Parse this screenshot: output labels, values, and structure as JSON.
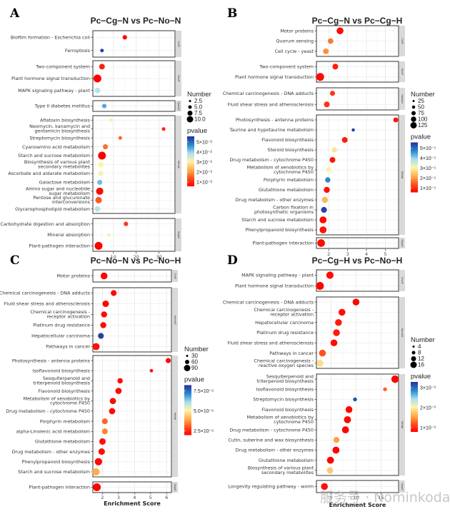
{
  "figure": {
    "watermark": "服务号 · Nominkoda"
  },
  "chart_data": [
    {
      "type": "scatter",
      "panel_letter": "A",
      "title": "Pc−Cg−N vs Pc−No−N",
      "xlabel": "",
      "ylabel": "",
      "xlim": [
        1,
        37
      ],
      "xticks": [
        10,
        20,
        30
      ],
      "grid": true,
      "size_legend": {
        "title": "Number",
        "values": [
          "2.5",
          "5.0",
          "7.5",
          "10.0"
        ]
      },
      "color_legend": {
        "title": "pvalue",
        "labels": [
          "5×10⁻²",
          "4×10⁻²",
          "3×10⁻²",
          "2×10⁻²",
          "1×10⁻²"
        ],
        "min": 0.003,
        "max": 0.055
      },
      "groups": [
        {
          "strip": "CellP",
          "terms": [
            {
              "name": "Biofilm formation - Escherichia coli",
              "score": 15.0,
              "number": 2,
              "pvalue": 0.004
            },
            {
              "name": "Ferroptosis",
              "score": 5.0,
              "number": 1,
              "pvalue": 0.053
            }
          ]
        },
        {
          "strip": "EnvIP",
          "terms": [
            {
              "name": "Two-component system",
              "score": 5.0,
              "number": 4,
              "pvalue": 0.006
            },
            {
              "name": "Plant hormone signal transduction",
              "score": 3.0,
              "number": 10,
              "pvalue": 0.003
            },
            {
              "name": "MAPK signaling pathway - plant",
              "score": 3.0,
              "number": 4,
              "pvalue": 0.036
            }
          ]
        },
        {
          "strip": "HumaD",
          "terms": [
            {
              "name": "Type II diabetes mellitus",
              "score": 6.0,
              "number": 2,
              "pvalue": 0.043
            }
          ]
        },
        {
          "strip": "Metab",
          "terms": [
            {
              "name": "Aflatoxin biosynthesis",
              "score": 9.0,
              "number": 1,
              "pvalue": 0.03
            },
            {
              "name": "Neomycin, kanamycin and gentamicin biosynthesis",
              "score": 32.0,
              "number": 1,
              "pvalue": 0.007
            },
            {
              "name": "Streptomycin biosynthesis",
              "score": 13.0,
              "number": 1,
              "pvalue": 0.013
            },
            {
              "name": "Cyanoamino acid metabolism",
              "score": 6.5,
              "number": 3,
              "pvalue": 0.014
            },
            {
              "name": "Starch and sucrose metabolism",
              "score": 5.0,
              "number": 10,
              "pvalue": 0.003
            },
            {
              "name": "Biosynthesis of various plant secondary metabolites",
              "score": 4.5,
              "number": 4,
              "pvalue": 0.029
            },
            {
              "name": "Ascorbate and aldarate metabolism",
              "score": 4.5,
              "number": 3,
              "pvalue": 0.03
            },
            {
              "name": "Galactose metabolism",
              "score": 4.0,
              "number": 3,
              "pvalue": 0.041
            },
            {
              "name": "Amino sugar and nucleotide sugar metabolism",
              "score": 4.0,
              "number": 8,
              "pvalue": 0.004
            },
            {
              "name": "Pentose and glucuronate interconversions",
              "score": 3.5,
              "number": 6,
              "pvalue": 0.012
            },
            {
              "name": "Glycerophospholipid metabolism",
              "score": 3.0,
              "number": 4,
              "pvalue": 0.036
            }
          ]
        },
        {
          "strip": "OrgaS",
          "terms": [
            {
              "name": "Carbohydrate digestion and absorption",
              "score": 15.5,
              "number": 2,
              "pvalue": 0.009
            },
            {
              "name": "Mineral absorption",
              "score": 8.0,
              "number": 1,
              "pvalue": 0.03
            },
            {
              "name": "Plant-pathogen interaction",
              "score": 3.5,
              "number": 10,
              "pvalue": 0.003
            }
          ]
        }
      ]
    },
    {
      "type": "scatter",
      "panel_letter": "B",
      "title": "Pc−Cg−N vs Pc−Cg−H",
      "xlabel": "",
      "ylabel": "",
      "xlim": [
        1.35,
        5.7
      ],
      "xticks": [
        2,
        3,
        4,
        5
      ],
      "grid": true,
      "size_legend": {
        "title": "Number",
        "values": [
          "25",
          "50",
          "75",
          "100",
          "125"
        ]
      },
      "color_legend": {
        "title": "pvalue",
        "labels": [
          "5×10⁻⁵",
          "4×10⁻⁵",
          "3×10⁻⁵",
          "2×10⁻⁵",
          "1×10⁻⁵"
        ],
        "min": 1e-07,
        "max": 5.2e-05
      },
      "groups": [
        {
          "strip": "CellP",
          "terms": [
            {
              "name": "Motor proteins",
              "score": 2.6,
              "number": 90,
              "pvalue": 1e-06
            },
            {
              "name": "Quorum sensing",
              "score": 2.1,
              "number": 50,
              "pvalue": 1.2e-05
            },
            {
              "name": "Cell cycle - yeast",
              "score": 1.85,
              "number": 55,
              "pvalue": 1.4e-05
            }
          ]
        },
        {
          "strip": "EnvIP",
          "terms": [
            {
              "name": "Two-component system",
              "score": 2.35,
              "number": 55,
              "pvalue": 3e-06
            },
            {
              "name": "Plant hormone signal transduction",
              "score": 1.55,
              "number": 130,
              "pvalue": 1e-06
            }
          ]
        },
        {
          "strip": "HumaD",
          "terms": [
            {
              "name": "Chemical carcinogenesis - DNA adducts",
              "score": 2.2,
              "number": 40,
              "pvalue": 6e-06
            },
            {
              "name": "Fluid shear stress and atherosclerosis",
              "score": 1.9,
              "number": 55,
              "pvalue": 5e-06
            }
          ]
        },
        {
          "strip": "Metab",
          "terms": [
            {
              "name": "Photosynthesis - antenna proteins",
              "score": 5.55,
              "number": 35,
              "pvalue": 2e-06
            },
            {
              "name": "Taurine and hypotaurine metabolism",
              "score": 3.3,
              "number": 8,
              "pvalue": 5e-05
            },
            {
              "name": "Flavonoid biosynthesis",
              "score": 2.85,
              "number": 55,
              "pvalue": 3e-06
            },
            {
              "name": "Steroid biosynthesis",
              "score": 2.3,
              "number": 45,
              "pvalue": 2.4e-05
            },
            {
              "name": "Drug metabolism - cytochrome P450",
              "score": 2.2,
              "number": 55,
              "pvalue": 2e-06
            },
            {
              "name": "Metabolism of xenobiotics by cytochrome P450",
              "score": 2.0,
              "number": 45,
              "pvalue": 2.6e-05
            },
            {
              "name": "Porphyrin metabolism",
              "score": 1.95,
              "number": 45,
              "pvalue": 4.3e-05
            },
            {
              "name": "Glutathione metabolism",
              "score": 1.9,
              "number": 65,
              "pvalue": 2e-06
            },
            {
              "name": "Drug metabolism - other enzymes",
              "score": 1.8,
              "number": 65,
              "pvalue": 1.8e-05
            },
            {
              "name": "Carbon fixation in photosynthetic organisms",
              "score": 1.75,
              "number": 60,
              "pvalue": 5e-05
            },
            {
              "name": "Starch and sucrose metabolism",
              "score": 1.7,
              "number": 95,
              "pvalue": 1e-06
            },
            {
              "name": "Phenylpropanoid biosynthesis",
              "score": 1.7,
              "number": 95,
              "pvalue": 2e-06
            }
          ]
        },
        {
          "strip": "OrgaS",
          "terms": [
            {
              "name": "Plant-pathogen interaction",
              "score": 1.6,
              "number": 120,
              "pvalue": 1e-06
            }
          ]
        }
      ]
    },
    {
      "type": "scatter",
      "panel_letter": "C",
      "title": "Pc−No−N vs Pc−No−H",
      "xlabel": "Enrichment Score",
      "ylabel": "",
      "xlim": [
        1.4,
        6.3
      ],
      "xticks": [
        2,
        3,
        4,
        5,
        6
      ],
      "grid": true,
      "size_legend": {
        "title": "Number",
        "values": [
          "30",
          "60",
          "90"
        ]
      },
      "color_legend": {
        "title": "pvalue",
        "labels": [
          "7.5×10⁻⁶",
          "5.0×10⁻⁶",
          "2.5×10⁻⁶"
        ],
        "min": 1e-07,
        "max": 9.8e-06
      },
      "groups": [
        {
          "strip": "CellP",
          "terms": [
            {
              "name": "Motor proteins",
              "score": 2.1,
              "number": 70,
              "pvalue": 2e-07
            }
          ]
        },
        {
          "strip": "HumaD",
          "terms": [
            {
              "name": "Chemical carcinogenesis - DNA adducts",
              "score": 2.7,
              "number": 45,
              "pvalue": 3e-07
            },
            {
              "name": "Fluid shear stress and atherosclerosis",
              "score": 2.2,
              "number": 60,
              "pvalue": 2e-07
            },
            {
              "name": "Chemical carcinogenesis - receptor activation",
              "score": 2.1,
              "number": 50,
              "pvalue": 3e-07
            },
            {
              "name": "Platinum drug resistance",
              "score": 2.05,
              "number": 50,
              "pvalue": 3e-07
            },
            {
              "name": "Hepatocellular carcinoma",
              "score": 1.9,
              "number": 45,
              "pvalue": 9.5e-06
            },
            {
              "name": "Pathways in cancer",
              "score": 1.6,
              "number": 75,
              "pvalue": 4e-07
            }
          ]
        },
        {
          "strip": "Metab",
          "terms": [
            {
              "name": "Photosynthesis - antenna proteins",
              "score": 6.1,
              "number": 30,
              "pvalue": 3e-07
            },
            {
              "name": "Isoflavonoid biosynthesis",
              "score": 5.05,
              "number": 8,
              "pvalue": 5e-07
            },
            {
              "name": "Sesquiterpenoid and triterpenoid biosynthesis",
              "score": 3.1,
              "number": 35,
              "pvalue": 3e-07
            },
            {
              "name": "Flavonoid biosynthesis",
              "score": 3.0,
              "number": 55,
              "pvalue": 3e-07
            },
            {
              "name": "Metabolism of xenobiotics by cytochrome P450",
              "score": 2.65,
              "number": 55,
              "pvalue": 3e-07
            },
            {
              "name": "Drug metabolism - cytochrome P450",
              "score": 2.6,
              "number": 55,
              "pvalue": 3e-07
            },
            {
              "name": "Porphyrin metabolism",
              "score": 2.15,
              "number": 45,
              "pvalue": 2e-06
            },
            {
              "name": "alpha-Linolenic acid metabolism",
              "score": 2.15,
              "number": 45,
              "pvalue": 2.5e-06
            },
            {
              "name": "Glutathione metabolism",
              "score": 2.0,
              "number": 60,
              "pvalue": 4e-07
            },
            {
              "name": "Drug metabolism - other enzymes",
              "score": 1.95,
              "number": 60,
              "pvalue": 4e-07
            },
            {
              "name": "Phenylpropanoid biosynthesis",
              "score": 1.75,
              "number": 85,
              "pvalue": 3e-07
            },
            {
              "name": "Starch and sucrose metabolism",
              "score": 1.6,
              "number": 80,
              "pvalue": 3.2e-06
            }
          ]
        },
        {
          "strip": "OrgaS",
          "terms": [
            {
              "name": "Plant-pathogen interaction",
              "score": 1.65,
              "number": 100,
              "pvalue": 2e-07
            }
          ]
        }
      ]
    },
    {
      "type": "scatter",
      "panel_letter": "D",
      "title": "Pc−Cg−H vs Pc−No−H",
      "xlabel": "Enrichment Score",
      "ylabel": "",
      "xlim": [
        2.1,
        18.5
      ],
      "xticks": [
        5,
        10,
        15
      ],
      "grid": true,
      "size_legend": {
        "title": "Number",
        "values": [
          "4",
          "8",
          "12",
          "16"
        ]
      },
      "color_legend": {
        "title": "pvalue",
        "labels": [
          "3×10⁻³",
          "2×10⁻³",
          "1×10⁻³"
        ],
        "min": 1e-05,
        "max": 0.0036
      },
      "groups": [
        {
          "strip": "EnvIP",
          "terms": [
            {
              "name": "MAPK signaling pathway - plant",
              "score": 4.8,
              "number": 13,
              "pvalue": 0.0001
            },
            {
              "name": "Plant hormone signal transduction",
              "score": 2.8,
              "number": 16,
              "pvalue": 2e-05
            }
          ]
        },
        {
          "strip": "HumaD",
          "terms": [
            {
              "name": "Chemical carcinogenesis - DNA adducts",
              "score": 10.0,
              "number": 11,
              "pvalue": 5e-05
            },
            {
              "name": "Chemical carcinogenesis - receptor activation",
              "score": 7.2,
              "number": 11,
              "pvalue": 0.0001
            },
            {
              "name": "Hepatocellular carcinoma",
              "score": 6.5,
              "number": 11,
              "pvalue": 0.0002
            },
            {
              "name": "Platinum drug resistance",
              "score": 6.1,
              "number": 11,
              "pvalue": 0.0002
            },
            {
              "name": "Fluid shear stress and atherosclerosis",
              "score": 5.6,
              "number": 11,
              "pvalue": 0.0001
            },
            {
              "name": "Pathways in cancer",
              "score": 3.3,
              "number": 11,
              "pvalue": 0.0006
            },
            {
              "name": "Chemical carcinogenesis - reactive oxygen species",
              "score": 2.8,
              "number": 11,
              "pvalue": 0.0016
            }
          ]
        },
        {
          "strip": "Metab",
          "terms": [
            {
              "name": "Sesquiterpenoid and triterpenoid biosynthesis",
              "score": 17.8,
              "number": 14,
              "pvalue": 2e-05
            },
            {
              "name": "Isoflavonoid biosynthesis",
              "score": 15.8,
              "number": 2,
              "pvalue": 0.0007
            },
            {
              "name": "Streptomycin biosynthesis",
              "score": 9.8,
              "number": 2,
              "pvalue": 0.0034
            },
            {
              "name": "Flavonoid biosynthesis",
              "score": 8.6,
              "number": 11,
              "pvalue": 5e-05
            },
            {
              "name": "Metabolism of xenobiotics by cytochrome P450",
              "score": 8.3,
              "number": 12,
              "pvalue": 5e-05
            },
            {
              "name": "Drug metabolism - cytochrome P450",
              "score": 7.9,
              "number": 12,
              "pvalue": 5e-05
            },
            {
              "name": "Cutin, suberine and wax biosynthesis",
              "score": 6.1,
              "number": 8,
              "pvalue": 0.0011
            },
            {
              "name": "Drug metabolism - other enzymes",
              "score": 6.0,
              "number": 12,
              "pvalue": 5e-05
            },
            {
              "name": "Glutathione metabolism",
              "score": 4.9,
              "number": 12,
              "pvalue": 5e-05
            },
            {
              "name": "Biosynthesis of various plant secondary metabolites",
              "score": 4.8,
              "number": 9,
              "pvalue": 0.0014
            }
          ]
        },
        {
          "strip": "OrgaS",
          "terms": [
            {
              "name": "Longevity regulating pathway - worm",
              "score": 3.7,
              "number": 11,
              "pvalue": 0.0001
            }
          ]
        }
      ]
    }
  ]
}
